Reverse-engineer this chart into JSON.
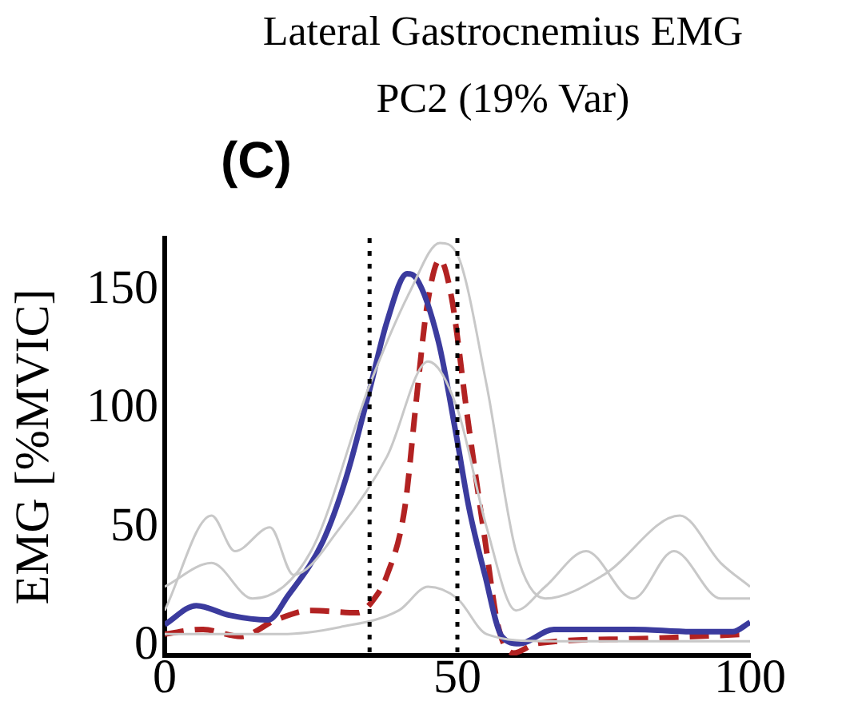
{
  "chart_data": {
    "type": "line",
    "title": "Lateral Gastrocnemius EMG",
    "subtitle": "PC2 (19% Var)",
    "ylabel": "EMG [%MVIC]",
    "annotations": [
      "(C)"
    ],
    "xlim": [
      0,
      100
    ],
    "xticks": [
      0,
      50,
      100
    ],
    "ylim": [
      -4,
      172
    ],
    "yticks": [
      0,
      50,
      100,
      150
    ],
    "grid": false,
    "legend": false,
    "marker": "none",
    "ref_lines": [
      {
        "axis": "x",
        "value": 35,
        "color": "#000000",
        "line_style": "dotted"
      },
      {
        "axis": "x",
        "value": 50,
        "color": "#000000",
        "line_style": "dotted"
      }
    ],
    "series": [
      {
        "color": "#c8c8c8",
        "line_style": "solid",
        "x": [
          0,
          8,
          15,
          25,
          35,
          42,
          47,
          50,
          55,
          60,
          65,
          75,
          88,
          95,
          100
        ],
        "values": [
          25,
          35,
          20,
          40,
          110,
          150,
          170,
          165,
          110,
          40,
          20,
          30,
          55,
          35,
          25
        ]
      },
      {
        "color": "#c8c8c8",
        "line_style": "solid",
        "x": [
          0,
          8,
          12,
          18,
          22,
          30,
          38,
          45,
          50,
          55,
          60,
          65,
          72,
          80,
          87,
          95,
          100
        ],
        "values": [
          15,
          55,
          40,
          50,
          30,
          50,
          80,
          120,
          100,
          50,
          15,
          25,
          40,
          20,
          40,
          20,
          20
        ]
      },
      {
        "color": "#c8c8c8",
        "line_style": "solid",
        "x": [
          0,
          10,
          20,
          30,
          40,
          45,
          50,
          55,
          65,
          100
        ],
        "values": [
          5,
          5,
          5,
          8,
          15,
          25,
          20,
          5,
          2,
          2
        ]
      },
      {
        "color": "#3b3b9e",
        "line_style": "solid",
        "x": [
          0,
          5.4,
          11,
          17.7,
          21,
          27,
          31,
          35,
          38,
          41.4,
          43,
          46.8,
          49.8,
          52,
          54.7,
          57.6,
          60.6,
          66.5,
          80,
          90,
          97,
          100
        ],
        "values": [
          9,
          17,
          13,
          11,
          21,
          44,
          71,
          108,
          137,
          157,
          155,
          128,
          89,
          58,
          30,
          4,
          1,
          7,
          7,
          6,
          6,
          10
        ]
      },
      {
        "color": "#b22222",
        "line_style": "dashed",
        "x": [
          0,
          6.4,
          13,
          19,
          25,
          33,
          35.5,
          38,
          41,
          43,
          44.8,
          47,
          49,
          51.7,
          54.7,
          57,
          59.6,
          63.5,
          80,
          100
        ],
        "values": [
          5,
          7,
          4,
          11,
          15,
          14,
          19,
          30,
          58,
          104,
          143,
          163,
          147,
          97,
          45,
          8,
          -3,
          1,
          3,
          5
        ]
      }
    ]
  }
}
